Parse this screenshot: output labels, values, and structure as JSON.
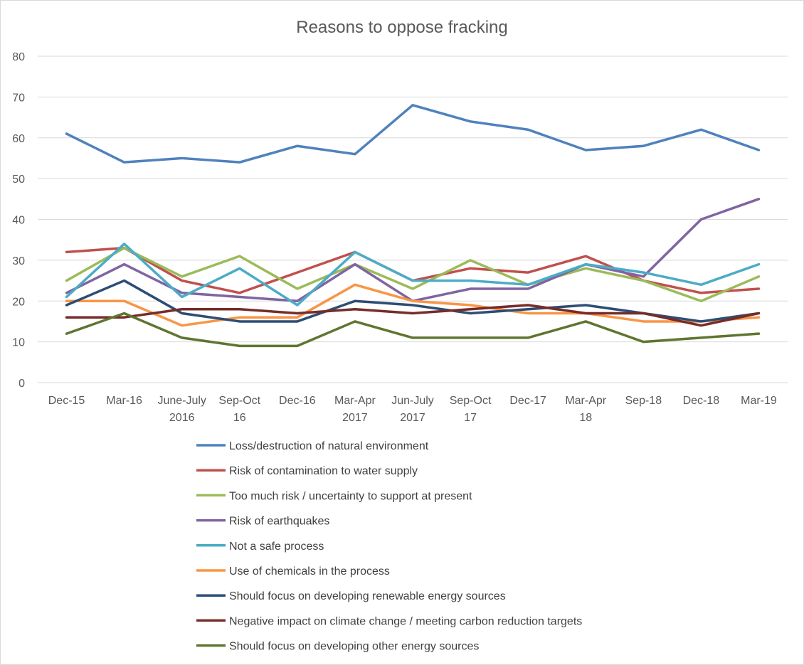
{
  "chart_data": {
    "type": "line",
    "title": "Reasons to oppose fracking",
    "categories": [
      [
        "Dec-15"
      ],
      [
        "Mar-16"
      ],
      [
        "June-July",
        "2016"
      ],
      [
        "Sep-Oct",
        "16"
      ],
      [
        "Dec-16"
      ],
      [
        "Mar-Apr",
        "2017"
      ],
      [
        "Jun-July",
        "2017"
      ],
      [
        "Sep-Oct",
        "17"
      ],
      [
        "Dec-17"
      ],
      [
        "Mar-Apr",
        "18"
      ],
      [
        "Sep-18"
      ],
      [
        "Dec-18"
      ],
      [
        "Mar-19"
      ]
    ],
    "ylim": [
      0,
      80
    ],
    "yticks": [
      0,
      10,
      20,
      30,
      40,
      50,
      60,
      70,
      80
    ],
    "grid": true,
    "legend_position": "bottom",
    "series": [
      {
        "name": "Loss/destruction of natural environment",
        "color": "#4f81bd",
        "values": [
          61,
          54,
          55,
          54,
          58,
          56,
          68,
          64,
          62,
          57,
          58,
          62,
          57
        ]
      },
      {
        "name": "Risk of contamination to water supply",
        "color": "#c0504d",
        "values": [
          32,
          33,
          25,
          22,
          27,
          32,
          25,
          28,
          27,
          31,
          25,
          22,
          23
        ]
      },
      {
        "name": "Too much risk / uncertainty to support at present",
        "color": "#9bbb59",
        "values": [
          25,
          33,
          26,
          31,
          23,
          29,
          23,
          30,
          24,
          28,
          25,
          20,
          26
        ]
      },
      {
        "name": "Risk of earthquakes",
        "color": "#8064a2",
        "values": [
          22,
          29,
          22,
          21,
          20,
          29,
          20,
          23,
          23,
          29,
          26,
          40,
          45
        ]
      },
      {
        "name": "Not a safe process",
        "color": "#4bacc6",
        "values": [
          21,
          34,
          21,
          28,
          19,
          32,
          25,
          25,
          24,
          29,
          27,
          24,
          29
        ]
      },
      {
        "name": "Use of chemicals in the process",
        "color": "#f79646",
        "values": [
          20,
          20,
          14,
          16,
          16,
          24,
          20,
          19,
          17,
          17,
          15,
          15,
          16
        ]
      },
      {
        "name": "Should focus on developing renewable energy sources",
        "color": "#2c4d75",
        "values": [
          19,
          25,
          17,
          15,
          15,
          20,
          19,
          17,
          18,
          19,
          17,
          15,
          17
        ]
      },
      {
        "name": "Negative impact on climate change / meeting carbon reduction targets",
        "color": "#772c2a",
        "values": [
          16,
          16,
          18,
          18,
          17,
          18,
          17,
          18,
          19,
          17,
          17,
          14,
          17
        ]
      },
      {
        "name": "Should focus on developing other energy sources",
        "color": "#5f7530",
        "values": [
          12,
          17,
          11,
          9,
          9,
          15,
          11,
          11,
          11,
          15,
          10,
          11,
          12
        ]
      }
    ]
  }
}
